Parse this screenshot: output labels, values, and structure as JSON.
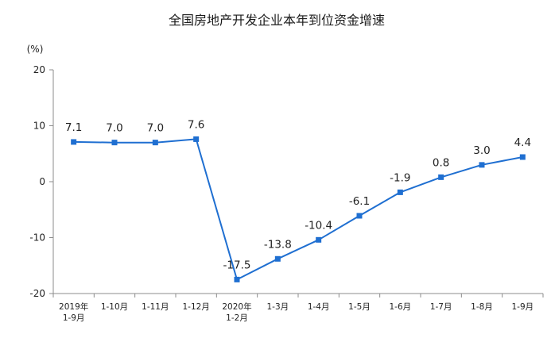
{
  "chart_data": {
    "type": "line",
    "title": "全国房地产开发企业本年到位资金增速",
    "unit_label": "(%)",
    "xlabel": "",
    "ylabel": "",
    "ylim": [
      -20,
      20
    ],
    "yticks": [
      "20",
      "10",
      "0",
      "-10",
      "-20"
    ],
    "ytick_values": [
      20,
      10,
      0,
      -10,
      -20
    ],
    "grid": false,
    "categories": [
      [
        "2019年",
        "1-9月"
      ],
      [
        "1-10月"
      ],
      [
        "1-11月"
      ],
      [
        "1-12月"
      ],
      [
        "2020年",
        "1-2月"
      ],
      [
        "1-3月"
      ],
      [
        "1-4月"
      ],
      [
        "1-5月"
      ],
      [
        "1-6月"
      ],
      [
        "1-7月"
      ],
      [
        "1-8月"
      ],
      [
        "1-9月"
      ]
    ],
    "series": [
      {
        "values": [
          7.1,
          7.0,
          7.0,
          7.6,
          -17.5,
          -13.8,
          -10.4,
          -6.1,
          -1.9,
          0.8,
          3.0,
          4.4
        ],
        "labels": [
          "7.1",
          "7.0",
          "7.0",
          "7.6",
          "-17.5",
          "-13.8",
          "-10.4",
          "-6.1",
          "-1.9",
          "0.8",
          "3.0",
          "4.4"
        ],
        "color": "#1f6fd1"
      }
    ],
    "axis_color": "#8c8c8c"
  }
}
